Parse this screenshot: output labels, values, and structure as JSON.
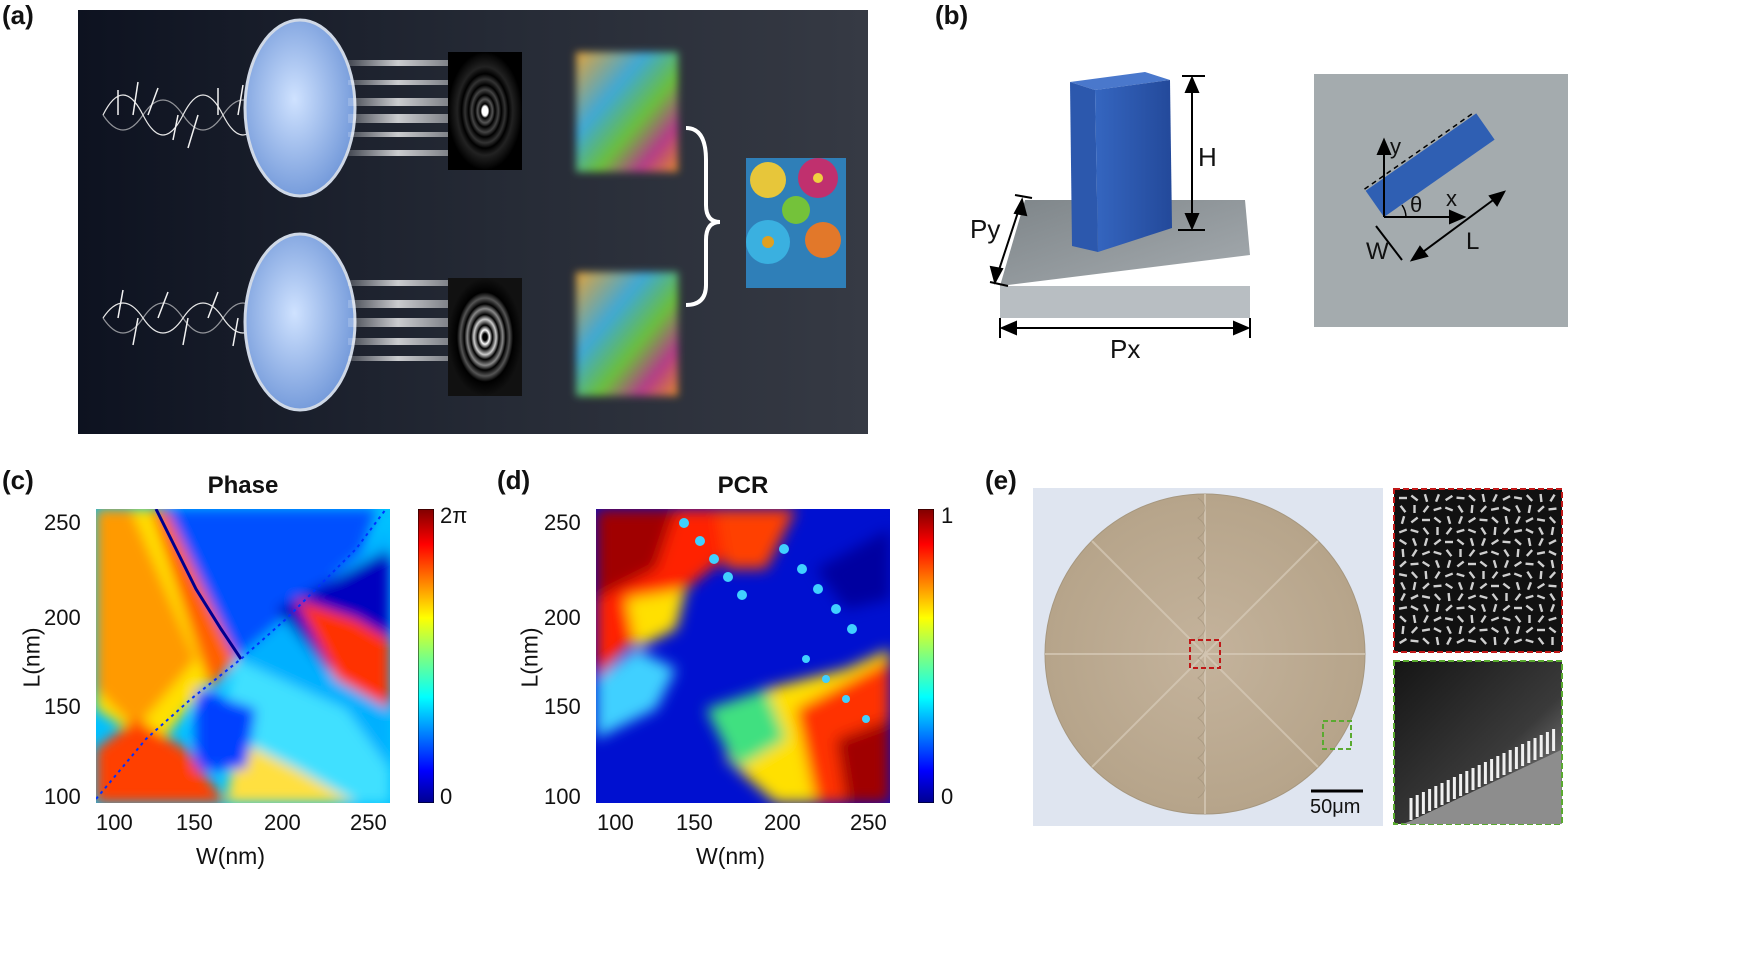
{
  "panels": {
    "a": {
      "label": "(a)"
    },
    "b": {
      "label": "(b)",
      "dims": {
        "height": "H",
        "period_y": "Py",
        "period_x": "Px"
      },
      "topview": {
        "y_axis": "y",
        "x_axis": "x",
        "angle": "θ",
        "width": "W",
        "length": "L"
      }
    },
    "c": {
      "label": "(c)",
      "chart_data": {
        "type": "heatmap",
        "title": "Phase",
        "xlabel": "W(nm)",
        "ylabel": "L(nm)",
        "xlim": [
          90,
          260
        ],
        "ylim": [
          100,
          255
        ],
        "x_ticks": [
          "100",
          "150",
          "200",
          "250"
        ],
        "y_ticks": [
          "250",
          "200",
          "150",
          "100"
        ],
        "colorbar": {
          "min_label": "0",
          "max_label": "2π",
          "range": [
            0,
            6.283
          ]
        }
      }
    },
    "d": {
      "label": "(d)",
      "chart_data": {
        "type": "heatmap",
        "title": "PCR",
        "xlabel": "W(nm)",
        "ylabel": "L(nm)",
        "xlim": [
          90,
          260
        ],
        "ylim": [
          100,
          255
        ],
        "x_ticks": [
          "100",
          "150",
          "200",
          "250"
        ],
        "y_ticks": [
          "250",
          "200",
          "150",
          "100"
        ],
        "colorbar": {
          "min_label": "0",
          "max_label": "1",
          "range": [
            0,
            1
          ]
        }
      }
    },
    "e": {
      "label": "(e)",
      "scalebar": "50μm"
    }
  },
  "colors": {
    "background_dark": "#1d2330",
    "pillar": "#2f5fb3",
    "substrate": "#9aa2a6",
    "jet_low": "#00008f",
    "jet_high": "#800000"
  }
}
